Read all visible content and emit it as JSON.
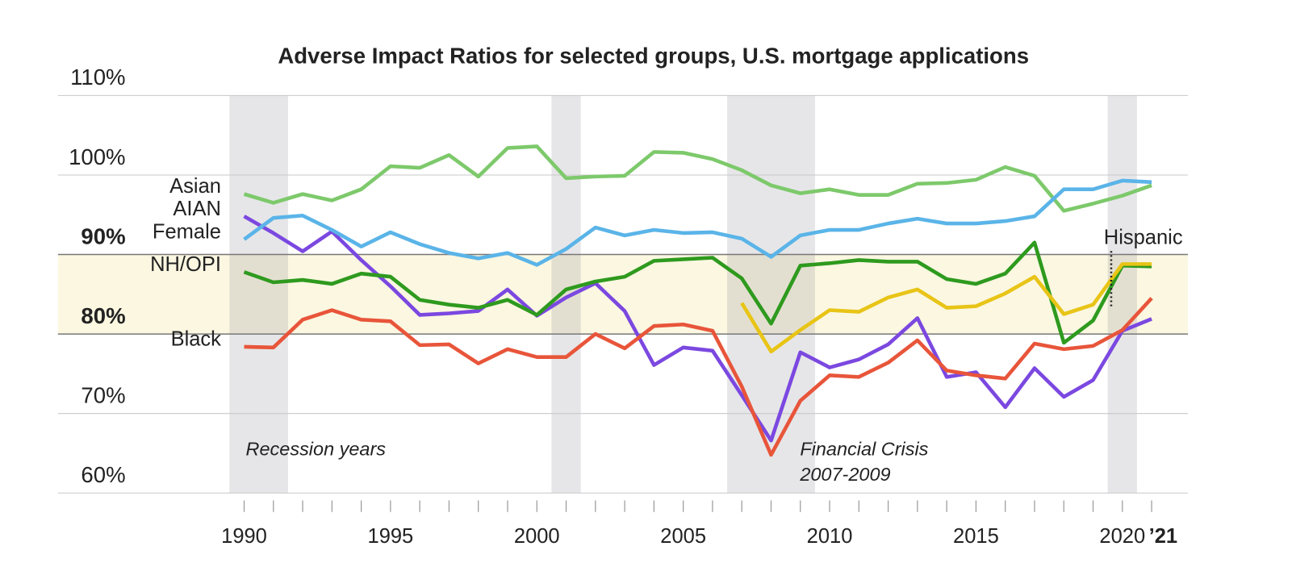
{
  "chart_data": {
    "type": "line",
    "title": "Adverse Impact Ratios for selected groups, U.S. mortgage applications",
    "x": [
      1990,
      1991,
      1992,
      1993,
      1994,
      1995,
      1996,
      1997,
      1998,
      1999,
      2000,
      2001,
      2002,
      2003,
      2004,
      2005,
      2006,
      2007,
      2008,
      2009,
      2010,
      2011,
      2012,
      2013,
      2014,
      2015,
      2016,
      2017,
      2018,
      2019,
      2020,
      2021
    ],
    "xlim": [
      1989.5,
      2021.5
    ],
    "xticks": [
      1990,
      1995,
      2000,
      2005,
      2010,
      2015,
      2020,
      {
        "value": 2021,
        "label": "’21"
      }
    ],
    "ylim": [
      60,
      110
    ],
    "yticks": [
      {
        "value": 60,
        "label": "60%"
      },
      {
        "value": 70,
        "label": "70%"
      },
      {
        "value": 80,
        "label": "80%"
      },
      {
        "value": 90,
        "label": "90%"
      },
      {
        "value": 100,
        "label": "100%"
      },
      {
        "value": 110,
        "label": "110%"
      }
    ],
    "grid": true,
    "highlight_band": [
      80,
      90
    ],
    "highlight_color": "#fbf7e1",
    "recessions": [
      [
        1990,
        1991
      ],
      [
        2001,
        2001
      ],
      [
        2007,
        2009
      ],
      [
        2020,
        2020
      ]
    ],
    "recession_label": "Recession years",
    "annotation": [
      "Financial Crisis",
      "2007-2009"
    ],
    "series": [
      {
        "name": "Asian",
        "color": "#7dc96b",
        "values": [
          97.6,
          96.5,
          97.6,
          96.8,
          98.2,
          101.1,
          100.9,
          102.5,
          99.8,
          103.4,
          103.6,
          99.6,
          99.8,
          99.9,
          102.9,
          102.8,
          102.0,
          100.6,
          98.7,
          97.7,
          98.2,
          97.5,
          97.5,
          98.9,
          99.0,
          99.4,
          101.0,
          99.9,
          95.5,
          96.4,
          97.4,
          98.7
        ]
      },
      {
        "name": "AIAN",
        "color": "#7b48e0",
        "values": [
          94.8,
          92.7,
          90.4,
          92.9,
          89.3,
          86.0,
          82.4,
          82.6,
          82.9,
          85.6,
          82.3,
          84.6,
          86.4,
          82.9,
          76.1,
          78.3,
          77.9,
          72.3,
          66.6,
          77.7,
          75.8,
          76.8,
          78.7,
          82.0,
          74.6,
          75.2,
          70.8,
          75.7,
          72.1,
          74.2,
          80.4,
          81.9
        ]
      },
      {
        "name": "Female",
        "color": "#5ab4e8",
        "values": [
          91.9,
          94.6,
          94.9,
          93.1,
          91.0,
          92.8,
          91.3,
          90.2,
          89.5,
          90.2,
          88.7,
          90.7,
          93.4,
          92.4,
          93.1,
          92.7,
          92.8,
          92.0,
          89.7,
          92.4,
          93.1,
          93.1,
          93.9,
          94.5,
          93.9,
          93.9,
          94.2,
          94.8,
          98.2,
          98.2,
          99.3,
          99.1
        ]
      },
      {
        "name": "NH/OPI",
        "color": "#2e9a1e",
        "values": [
          87.8,
          86.5,
          86.8,
          86.3,
          87.6,
          87.2,
          84.3,
          83.7,
          83.3,
          84.3,
          82.4,
          85.6,
          86.6,
          87.2,
          89.2,
          89.4,
          89.6,
          87.0,
          81.3,
          88.6,
          88.9,
          89.3,
          89.1,
          89.1,
          86.9,
          86.3,
          87.6,
          91.5,
          78.9,
          81.7,
          88.6,
          88.5
        ]
      },
      {
        "name": "Black",
        "color": "#e8553a",
        "values": [
          78.4,
          78.3,
          81.8,
          83.0,
          81.8,
          81.6,
          78.6,
          78.7,
          76.3,
          78.1,
          77.1,
          77.1,
          80.0,
          78.2,
          81.0,
          81.2,
          80.4,
          73.4,
          64.8,
          71.6,
          74.8,
          74.6,
          76.4,
          79.2,
          75.4,
          74.8,
          74.4,
          78.8,
          78.1,
          78.5,
          80.5,
          84.5
        ]
      },
      {
        "name": "Hispanic",
        "color": "#e8c416",
        "values": [
          null,
          null,
          null,
          null,
          null,
          null,
          null,
          null,
          null,
          null,
          null,
          null,
          null,
          null,
          null,
          null,
          null,
          83.9,
          77.8,
          80.5,
          83.0,
          82.8,
          84.6,
          85.6,
          83.3,
          83.5,
          85.1,
          87.2,
          82.5,
          83.7,
          88.8,
          88.8
        ]
      }
    ]
  }
}
